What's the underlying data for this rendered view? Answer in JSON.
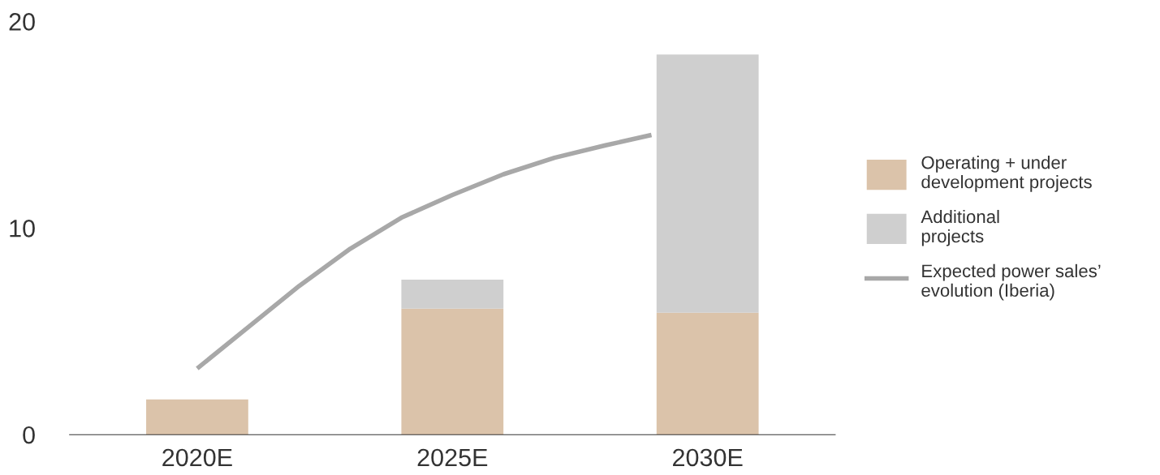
{
  "chart_data": {
    "type": "bar",
    "stacked": true,
    "x": [
      2020,
      2025,
      2030
    ],
    "xlim": [
      2017.5,
      2032.5
    ],
    "xticks": [
      {
        "value": 2020,
        "label": "2020E"
      },
      {
        "value": 2025,
        "label": "2025E"
      },
      {
        "value": 2030,
        "label": "2030E"
      }
    ],
    "ylim": [
      0,
      20
    ],
    "yticks": [
      0,
      10,
      20
    ],
    "series": [
      {
        "name": "Operating + under development projects",
        "color": "#dbc3aa",
        "values": [
          1.7,
          6.1,
          5.9
        ]
      },
      {
        "name": "Additional projects",
        "color": "#cfcfcf",
        "values": [
          null,
          1.4,
          12.5
        ]
      },
      {
        "name": "Expected power sales’ evolution (Iberia)",
        "type": "line",
        "color": "#a8a8a8",
        "x": [
          2020,
          2021,
          2022,
          2023,
          2024,
          2025,
          2026,
          2027,
          2028,
          2028.9
        ],
        "values": [
          3.2,
          5.2,
          7.2,
          9.0,
          10.5,
          11.6,
          12.6,
          13.4,
          14.0,
          14.5
        ]
      }
    ],
    "legend": "right",
    "grid": false
  }
}
